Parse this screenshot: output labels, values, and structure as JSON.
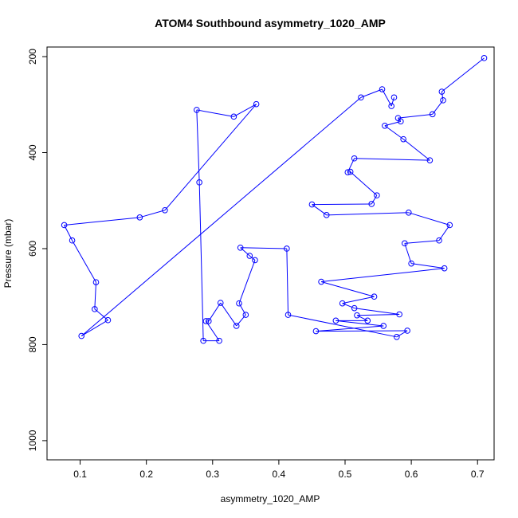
{
  "chart_data": {
    "type": "line",
    "title": "ATOM4 Southbound asymmetry_1020_AMP",
    "xlabel": "asymmetry_1020_AMP",
    "ylabel": "Pressure (mbar)",
    "xlim": [
      0.05,
      0.725
    ],
    "ylim": [
      1040,
      180
    ],
    "y_reversed": true,
    "xticks": [
      "0.1",
      "0.2",
      "0.3",
      "0.4",
      "0.5",
      "0.6",
      "0.7"
    ],
    "yticks": [
      "200",
      "400",
      "600",
      "800",
      "1000"
    ],
    "grid": false,
    "legend": "none",
    "series_color": "#0000ff",
    "marker": "open-circle",
    "visible_points": [
      {
        "x": 0.71,
        "y": 203
      },
      {
        "x": 0.646,
        "y": 273
      },
      {
        "x": 0.648,
        "y": 291
      },
      {
        "x": 0.632,
        "y": 320
      },
      {
        "x": 0.58,
        "y": 328
      },
      {
        "x": 0.584,
        "y": 335
      },
      {
        "x": 0.56,
        "y": 344
      },
      {
        "x": 0.588,
        "y": 372
      },
      {
        "x": 0.628,
        "y": 416
      },
      {
        "x": 0.514,
        "y": 412
      },
      {
        "x": 0.504,
        "y": 441
      },
      {
        "x": 0.508,
        "y": 440
      },
      {
        "x": 0.548,
        "y": 489
      },
      {
        "x": 0.54,
        "y": 507
      },
      {
        "x": 0.45,
        "y": 508
      },
      {
        "x": 0.472,
        "y": 530
      },
      {
        "x": 0.596,
        "y": 525
      },
      {
        "x": 0.658,
        "y": 551
      },
      {
        "x": 0.642,
        "y": 583
      },
      {
        "x": 0.59,
        "y": 589
      },
      {
        "x": 0.6,
        "y": 631
      },
      {
        "x": 0.65,
        "y": 641
      },
      {
        "x": 0.464,
        "y": 669
      },
      {
        "x": 0.544,
        "y": 700
      },
      {
        "x": 0.496,
        "y": 714
      },
      {
        "x": 0.514,
        "y": 724
      },
      {
        "x": 0.582,
        "y": 737
      },
      {
        "x": 0.518,
        "y": 739
      },
      {
        "x": 0.534,
        "y": 750
      },
      {
        "x": 0.486,
        "y": 750
      },
      {
        "x": 0.558,
        "y": 761
      },
      {
        "x": 0.456,
        "y": 772
      },
      {
        "x": 0.594,
        "y": 771
      },
      {
        "x": 0.578,
        "y": 784
      },
      {
        "x": 0.414,
        "y": 738
      },
      {
        "x": 0.412,
        "y": 600
      },
      {
        "x": 0.342,
        "y": 598
      },
      {
        "x": 0.356,
        "y": 615
      },
      {
        "x": 0.364,
        "y": 624
      },
      {
        "x": 0.34,
        "y": 714
      },
      {
        "x": 0.35,
        "y": 738
      },
      {
        "x": 0.336,
        "y": 761
      },
      {
        "x": 0.312,
        "y": 713
      },
      {
        "x": 0.294,
        "y": 751
      },
      {
        "x": 0.29,
        "y": 751
      },
      {
        "x": 0.31,
        "y": 792
      },
      {
        "x": 0.286,
        "y": 792
      },
      {
        "x": 0.28,
        "y": 462
      },
      {
        "x": 0.276,
        "y": 311
      },
      {
        "x": 0.332,
        "y": 325
      },
      {
        "x": 0.366,
        "y": 299
      },
      {
        "x": 0.228,
        "y": 520
      },
      {
        "x": 0.19,
        "y": 535
      },
      {
        "x": 0.076,
        "y": 551
      },
      {
        "x": 0.088,
        "y": 583
      },
      {
        "x": 0.124,
        "y": 670
      },
      {
        "x": 0.122,
        "y": 726
      },
      {
        "x": 0.142,
        "y": 749
      },
      {
        "x": 0.102,
        "y": 782
      },
      {
        "x": 0.524,
        "y": 285
      },
      {
        "x": 0.556,
        "y": 268
      },
      {
        "x": 0.57,
        "y": 303
      },
      {
        "x": 0.574,
        "y": 285
      }
    ]
  }
}
